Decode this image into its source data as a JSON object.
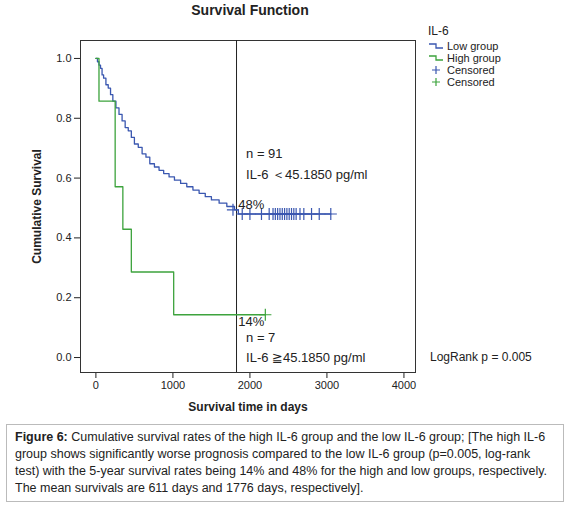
{
  "chart_data": {
    "type": "step",
    "title": "Survival Function",
    "x_label": "Survival time in days",
    "y_label": "Cumulative Survival",
    "xlim": [
      -200,
      4150
    ],
    "xticks": [
      0,
      1000,
      2000,
      3000,
      4000
    ],
    "ylim": [
      -0.05,
      1.06
    ],
    "yticks": [
      {
        "value": 0,
        "label": "0.0"
      },
      {
        "value": 0.2,
        "label": "0.2"
      },
      {
        "value": 0.4,
        "label": "0.4"
      },
      {
        "value": 0.6,
        "label": "0.6"
      },
      {
        "value": 0.8,
        "label": "0.8"
      },
      {
        "value": 1.0,
        "label": "1.0"
      }
    ],
    "grid": false,
    "legend": "right",
    "legend_title": "IL-6",
    "reference_x": 1826,
    "series": [
      {
        "name": "Low group",
        "color": "#3a57b0",
        "marker": "plus",
        "censored_label": "Censored",
        "x": [
          0,
          20,
          40,
          60,
          80,
          100,
          130,
          160,
          190,
          220,
          260,
          300,
          340,
          380,
          420,
          460,
          500,
          550,
          600,
          650,
          700,
          760,
          820,
          880,
          950,
          1020,
          1100,
          1180,
          1260,
          1340,
          1420,
          1500,
          1600,
          1700,
          1800,
          1850,
          3050
        ],
        "values": [
          1.0,
          0.989,
          0.978,
          0.967,
          0.945,
          0.934,
          0.912,
          0.901,
          0.879,
          0.857,
          0.835,
          0.813,
          0.791,
          0.769,
          0.758,
          0.736,
          0.714,
          0.703,
          0.681,
          0.67,
          0.648,
          0.637,
          0.626,
          0.615,
          0.604,
          0.593,
          0.582,
          0.571,
          0.56,
          0.549,
          0.538,
          0.527,
          0.516,
          0.505,
          0.494,
          0.48,
          0.48
        ],
        "censored_x": [
          1780,
          1900,
          2000,
          2150,
          2250,
          2300,
          2330,
          2360,
          2390,
          2420,
          2450,
          2480,
          2510,
          2540,
          2570,
          2600,
          2650,
          2700,
          2800,
          2900,
          3050
        ],
        "censored_values": [
          0.494,
          0.48,
          0.48,
          0.48,
          0.48,
          0.48,
          0.48,
          0.48,
          0.48,
          0.48,
          0.48,
          0.48,
          0.48,
          0.48,
          0.48,
          0.48,
          0.48,
          0.48,
          0.48,
          0.48,
          0.48
        ]
      },
      {
        "name": "High group",
        "color": "#3da33d",
        "marker": "plus",
        "censored_label": "Censored",
        "x": [
          0,
          40,
          250,
          350,
          460,
          1010,
          2200
        ],
        "values": [
          1.0,
          0.857,
          0.571,
          0.429,
          0.286,
          0.143,
          0.143
        ],
        "censored_x": [
          2200
        ],
        "censored_values": [
          0.143
        ]
      }
    ],
    "annotations": [
      {
        "text": "n = 91",
        "x": 1950,
        "y": 0.68
      },
      {
        "text": "IL-6 ＜45.1850 pg/ml",
        "x": 1950,
        "y": 0.61
      },
      {
        "text": "48%",
        "x": 1850,
        "y": 0.51
      },
      {
        "text": "14%",
        "x": 1850,
        "y": 0.12
      },
      {
        "text": "n = 7",
        "x": 1950,
        "y": 0.065
      },
      {
        "text": "IL-6 ≧45.1850 pg/ml",
        "x": 1950,
        "y": 0.0
      }
    ],
    "note": "LogRank p = 0.005",
    "caption_label": "Figure 6:",
    "caption": "Cumulative survival rates of the high IL-6 group and the low IL-6 group; [The high IL-6 group shows significantly worse prognosis compared to the low IL-6 group (p=0.005, log-rank test) with the 5-year survival rates being 14% and 48% for the high and low groups, respectively. The mean survivals are 611 days and 1776 days, respectively]."
  }
}
